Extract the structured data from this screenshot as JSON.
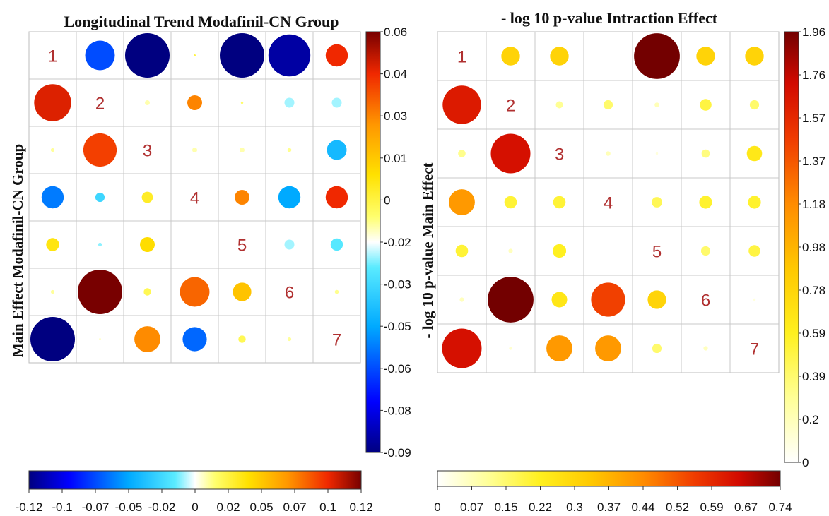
{
  "chart_data": [
    {
      "type": "heatmap",
      "title": "Longitudinal Trend Modafinil-CN Group",
      "ylabel": "Main Effect Modafinil-CN Group",
      "diagonal_labels": [
        "1",
        "2",
        "3",
        "4",
        "5",
        "6",
        "7"
      ],
      "upper_triangle": {
        "colorbar_ticks": [
          "0.06",
          "0.04",
          "0.03",
          "0.01",
          "0",
          "-0.02",
          "-0.03",
          "-0.05",
          "-0.06",
          "-0.08",
          "-0.09"
        ],
        "range": [
          -0.09,
          0.06
        ],
        "rows": [
          [
            null,
            -0.06,
            -0.09,
            0.0,
            -0.09,
            -0.085,
            0.045
          ],
          [
            null,
            null,
            -0.01,
            0.03,
            -0.005,
            -0.02,
            -0.02
          ],
          [
            null,
            null,
            null,
            -0.01,
            -0.01,
            -0.008,
            -0.04
          ],
          [
            null,
            null,
            null,
            null,
            0.03,
            -0.045,
            0.045
          ],
          [
            null,
            null,
            null,
            null,
            null,
            -0.02,
            -0.025
          ],
          [
            null,
            null,
            null,
            null,
            null,
            null,
            -0.008
          ],
          [
            null,
            null,
            null,
            null,
            null,
            null,
            null
          ]
        ]
      },
      "lower_triangle": {
        "colorbar_ticks": [
          "-0.12",
          "-0.1",
          "-0.07",
          "-0.05",
          "-0.02",
          "0",
          "0.02",
          "0.05",
          "0.07",
          "0.1",
          "0.12"
        ],
        "range": [
          -0.12,
          0.12
        ],
        "rows": [
          [
            null,
            null,
            null,
            null,
            null,
            null,
            null
          ],
          [
            0.1,
            null,
            null,
            null,
            null,
            null,
            null
          ],
          [
            0.01,
            0.09,
            null,
            null,
            null,
            null,
            null
          ],
          [
            -0.06,
            -0.025,
            0.03,
            null,
            null,
            null,
            null
          ],
          [
            0.035,
            -0.01,
            0.04,
            0.0,
            null,
            null,
            null
          ],
          [
            0.01,
            0.12,
            0.02,
            0.08,
            0.05,
            null,
            null
          ],
          [
            -0.12,
            0.005,
            0.07,
            -0.065,
            0.02,
            0.01,
            null
          ]
        ]
      },
      "colormap": "jet"
    },
    {
      "type": "heatmap",
      "title": "- log 10 p-value Intraction Effect",
      "ylabel": "- log 10 p-value Main Effect",
      "diagonal_labels": [
        "1",
        "2",
        "3",
        "4",
        "5",
        "6",
        "7"
      ],
      "upper_triangle": {
        "colorbar_ticks": [
          "1.96",
          "1.76",
          "1.57",
          "1.37",
          "1.18",
          "0.98",
          "0.78",
          "0.59",
          "0.39",
          "0.2",
          "0"
        ],
        "range": [
          0,
          1.96
        ],
        "rows": [
          [
            null,
            0.8,
            0.8,
            0.0,
            1.96,
            0.8,
            0.8
          ],
          [
            null,
            null,
            0.3,
            0.4,
            0.2,
            0.5,
            0.4
          ],
          [
            null,
            null,
            null,
            0.2,
            0.1,
            0.35,
            0.65
          ],
          [
            null,
            null,
            null,
            null,
            0.45,
            0.55,
            0.55
          ],
          [
            null,
            null,
            null,
            null,
            null,
            0.4,
            0.5
          ],
          [
            null,
            null,
            null,
            null,
            null,
            null,
            0.1
          ],
          [
            null,
            null,
            null,
            null,
            null,
            null,
            null
          ]
        ]
      },
      "lower_triangle": {
        "colorbar_ticks": [
          "0",
          "0.07",
          "0.15",
          "0.22",
          "0.3",
          "0.37",
          "0.44",
          "0.52",
          "0.59",
          "0.67",
          "0.74"
        ],
        "range": [
          0,
          0.74
        ],
        "rows": [
          [
            null,
            null,
            null,
            null,
            null,
            null,
            null
          ],
          [
            0.62,
            null,
            null,
            null,
            null,
            null,
            null
          ],
          [
            0.12,
            0.64,
            null,
            null,
            null,
            null,
            null
          ],
          [
            0.42,
            0.2,
            0.2,
            null,
            null,
            null,
            null
          ],
          [
            0.2,
            0.07,
            0.22,
            0.0,
            null,
            null,
            null
          ],
          [
            0.07,
            0.74,
            0.25,
            0.55,
            0.3,
            null,
            null
          ],
          [
            0.64,
            0.05,
            0.42,
            0.42,
            0.15,
            0.07,
            null
          ]
        ]
      },
      "colormap": "hot"
    }
  ]
}
